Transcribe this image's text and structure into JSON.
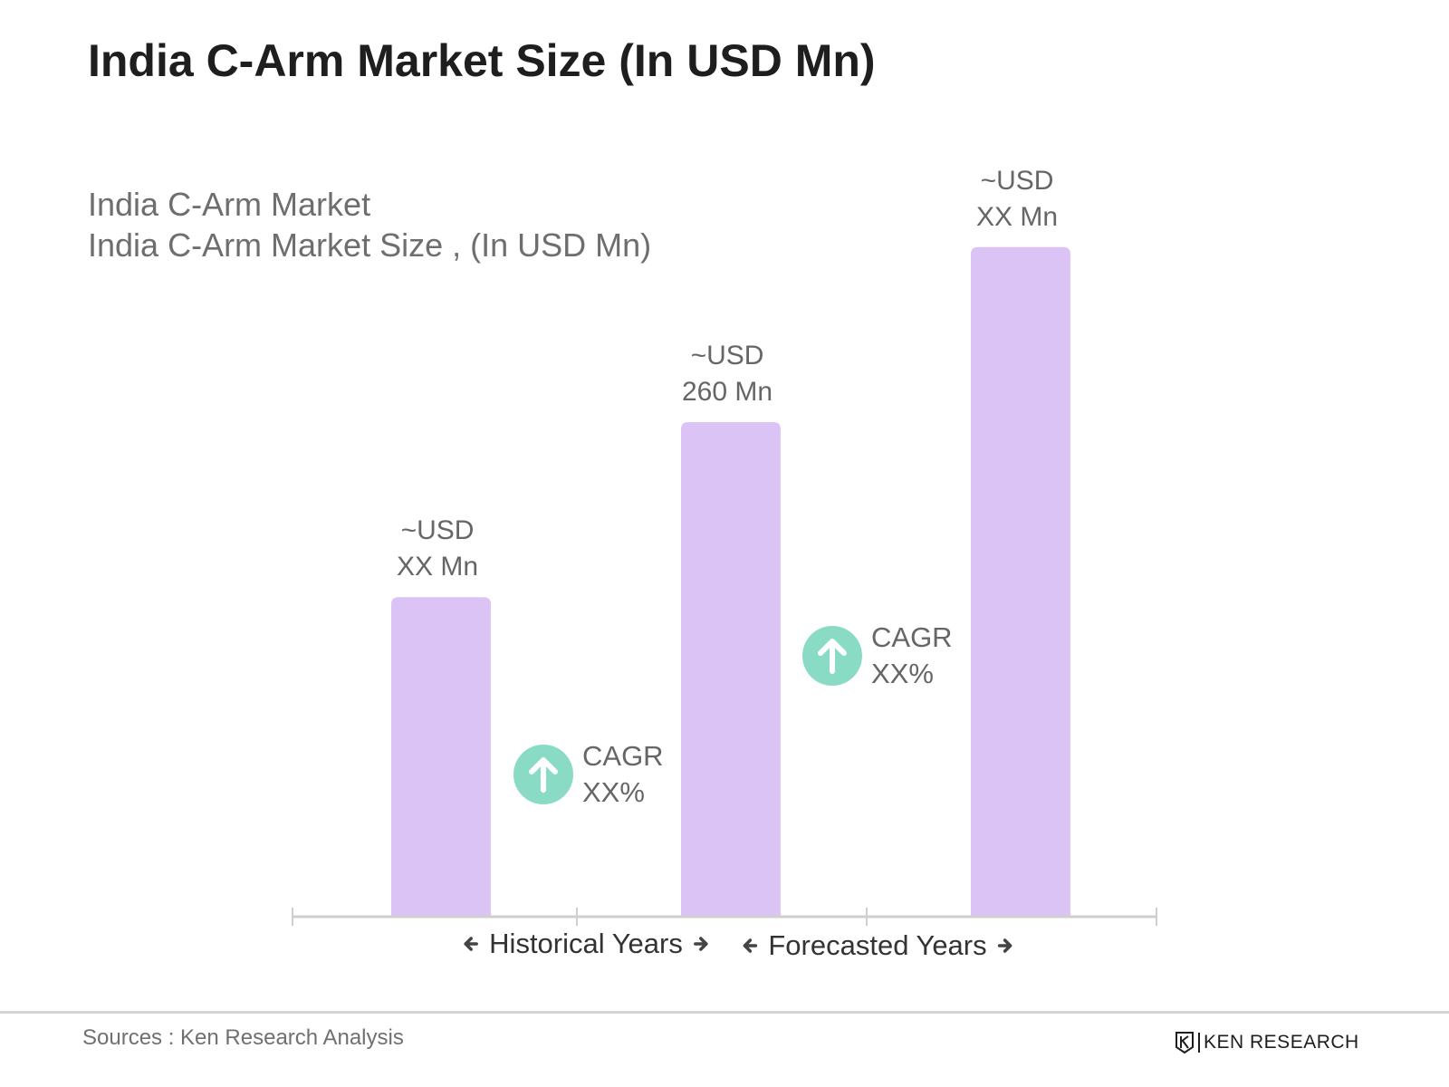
{
  "title": "India C-Arm Market Size (In USD Mn)",
  "subtitle_line1": "India C-Arm Market",
  "subtitle_line2": "India C-Arm Market Size , (In USD Mn)",
  "chart_data": {
    "type": "bar",
    "title": "India C-Arm Market Size (In USD Mn)",
    "xlabel": "",
    "ylabel": "",
    "categories": [
      "",
      "",
      ""
    ],
    "values": [
      168,
      260,
      352
    ],
    "data_labels": [
      {
        "line1": "~USD",
        "line2": "XX Mn"
      },
      {
        "line1": "~USD",
        "line2": "260 Mn"
      },
      {
        "line1": "~USD",
        "line2": "XX Mn"
      }
    ],
    "ylim": [
      0,
      400
    ],
    "grid": false,
    "bar_color": "#dcc3f6",
    "cagr_badges": [
      {
        "label": "CAGR",
        "value": "XX%"
      },
      {
        "label": "CAGR",
        "value": "XX%"
      }
    ],
    "cagr_color": "#8adbc6",
    "periods": [
      {
        "label": "Historical Years"
      },
      {
        "label": "Forecasted Years"
      }
    ]
  },
  "footer": {
    "sources": "Sources : Ken Research Analysis",
    "brand": "KEN RESEARCH",
    "brand_logo_icon": "ken-research-logo-icon"
  }
}
